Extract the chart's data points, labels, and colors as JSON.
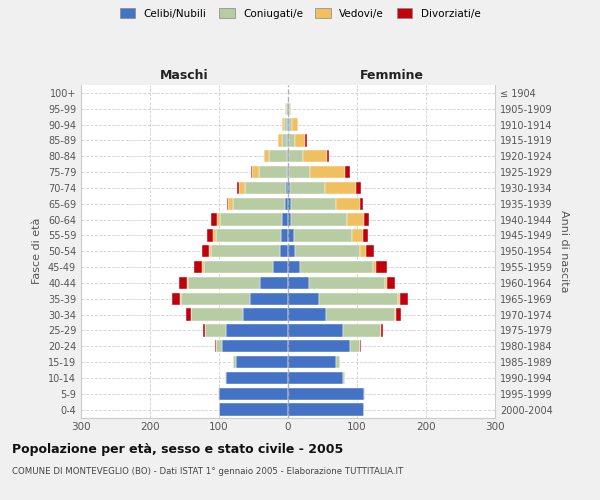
{
  "age_groups": [
    "0-4",
    "5-9",
    "10-14",
    "15-19",
    "20-24",
    "25-29",
    "30-34",
    "35-39",
    "40-44",
    "45-49",
    "50-54",
    "55-59",
    "60-64",
    "65-69",
    "70-74",
    "75-79",
    "80-84",
    "85-89",
    "90-94",
    "95-99",
    "100+"
  ],
  "birth_years": [
    "2000-2004",
    "1995-1999",
    "1990-1994",
    "1985-1989",
    "1980-1984",
    "1975-1979",
    "1970-1974",
    "1965-1969",
    "1960-1964",
    "1955-1959",
    "1950-1954",
    "1945-1949",
    "1940-1944",
    "1935-1939",
    "1930-1934",
    "1925-1929",
    "1920-1924",
    "1915-1919",
    "1910-1914",
    "1905-1909",
    "≤ 1904"
  ],
  "male": {
    "celibi": [
      100,
      100,
      90,
      75,
      95,
      90,
      65,
      55,
      40,
      22,
      12,
      10,
      8,
      4,
      3,
      2,
      2,
      1,
      1,
      1,
      0
    ],
    "coniugati": [
      0,
      1,
      2,
      5,
      10,
      30,
      75,
      100,
      105,
      100,
      100,
      95,
      90,
      75,
      60,
      40,
      25,
      8,
      5,
      2,
      0
    ],
    "vedovi": [
      0,
      0,
      0,
      0,
      0,
      1,
      0,
      1,
      1,
      2,
      2,
      3,
      5,
      8,
      8,
      10,
      8,
      5,
      3,
      1,
      0
    ],
    "divorziati": [
      0,
      0,
      0,
      0,
      1,
      2,
      8,
      12,
      12,
      12,
      10,
      10,
      8,
      2,
      3,
      2,
      0,
      0,
      0,
      0,
      0
    ]
  },
  "female": {
    "nubili": [
      110,
      110,
      80,
      70,
      90,
      80,
      55,
      45,
      30,
      18,
      10,
      8,
      5,
      4,
      3,
      2,
      2,
      2,
      1,
      1,
      0
    ],
    "coniugate": [
      0,
      1,
      2,
      5,
      15,
      55,
      100,
      115,
      110,
      105,
      95,
      85,
      80,
      65,
      50,
      30,
      20,
      8,
      5,
      2,
      0
    ],
    "vedove": [
      0,
      0,
      0,
      0,
      0,
      0,
      1,
      2,
      3,
      5,
      8,
      15,
      25,
      35,
      45,
      50,
      35,
      15,
      8,
      2,
      0
    ],
    "divorziate": [
      0,
      0,
      0,
      0,
      1,
      2,
      8,
      12,
      12,
      15,
      12,
      8,
      8,
      5,
      8,
      8,
      2,
      2,
      0,
      0,
      0
    ]
  },
  "colors": {
    "celibi": "#4472c4",
    "coniugati": "#b8cca4",
    "vedovi": "#f0c060",
    "divorziati": "#c0000c"
  },
  "title": "Popolazione per età, sesso e stato civile - 2005",
  "subtitle": "COMUNE DI MONTEVEGLIO (BO) - Dati ISTAT 1° gennaio 2005 - Elaborazione TUTTITALIA.IT",
  "ylabel_left": "Fasce di età",
  "ylabel_right": "Anni di nascita",
  "xlabel_left": "Maschi",
  "xlabel_right": "Femmine",
  "xlim": 300,
  "bg_color": "#f0f0f0",
  "plot_bg": "#ffffff",
  "grid_color": "#bbbbbb"
}
